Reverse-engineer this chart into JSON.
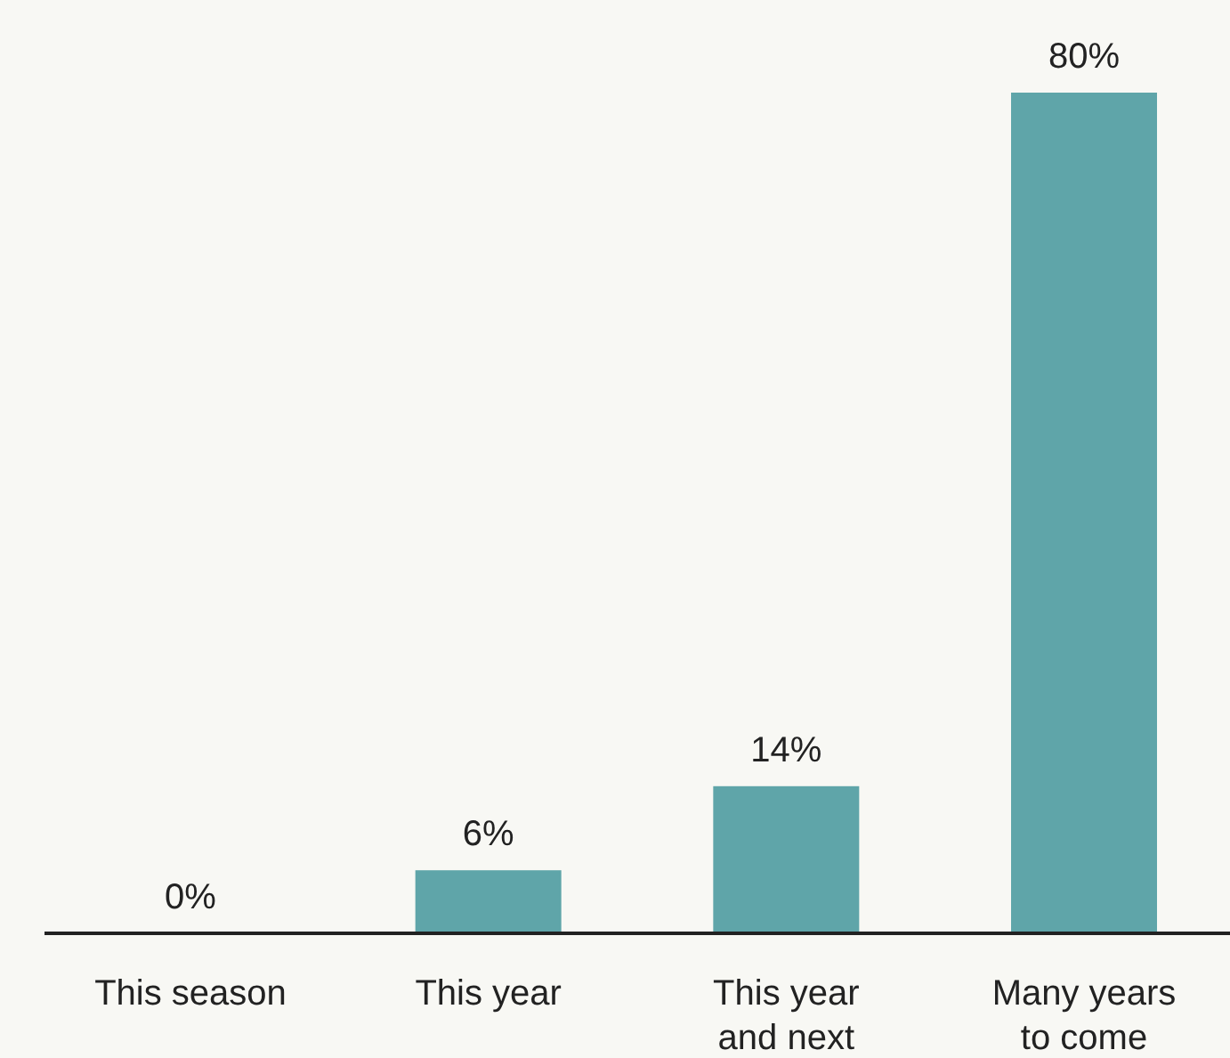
{
  "chart_data": {
    "type": "bar",
    "categories": [
      "This season",
      "This year",
      "This year and next",
      "Many years to come"
    ],
    "values": [
      0,
      6,
      14,
      80
    ],
    "color": "#5fa5a9",
    "value_labels": [
      "0%",
      "6%",
      "14%",
      "80%"
    ],
    "ylim": [
      0,
      80
    ],
    "tick_labels": "x"
  }
}
